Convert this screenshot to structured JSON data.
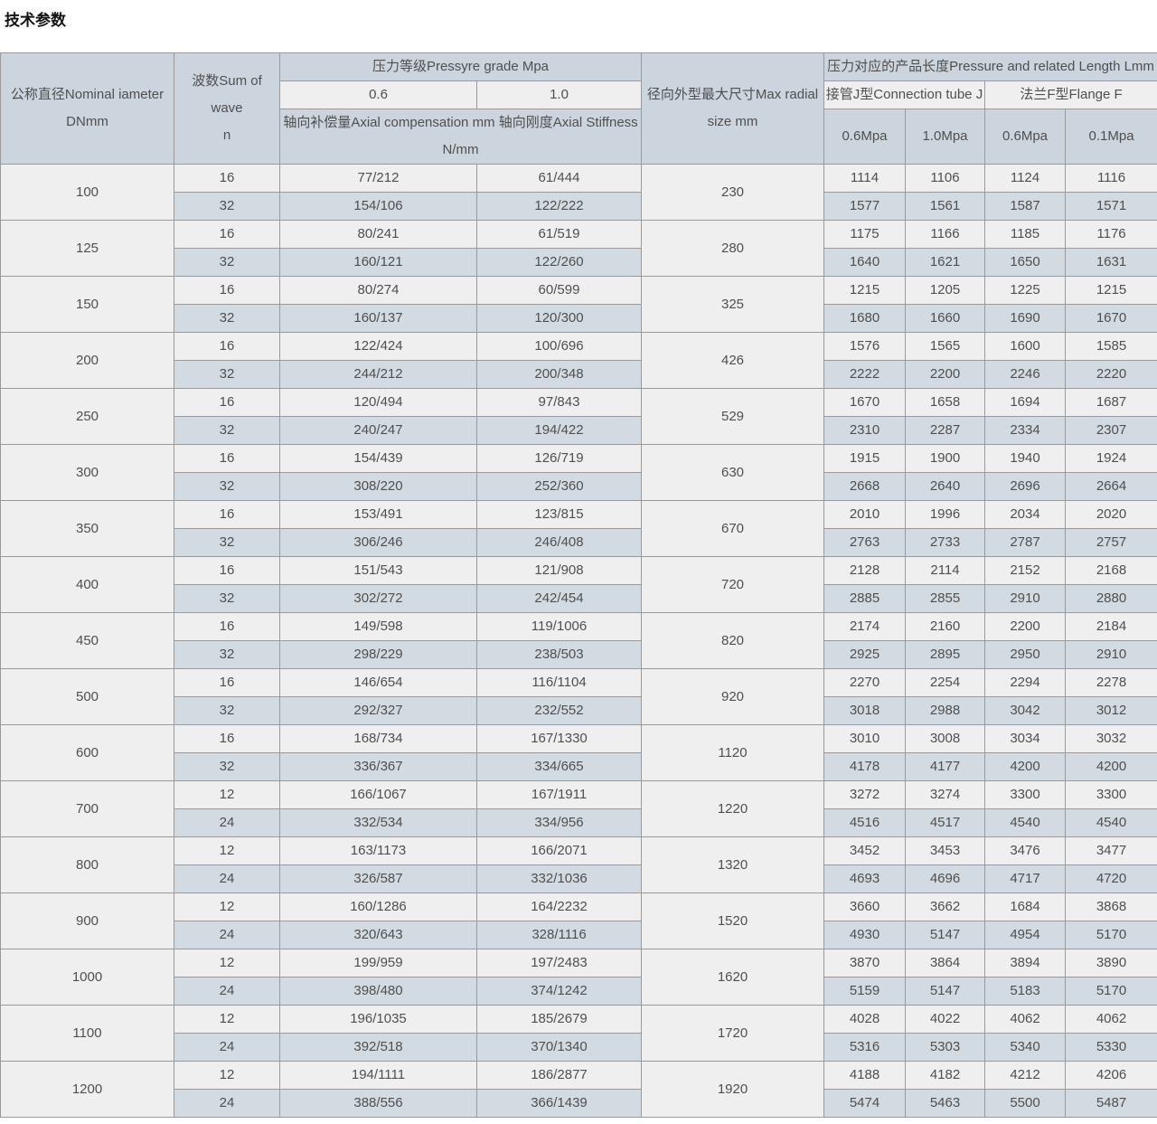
{
  "page": {
    "title": "技术参数"
  },
  "colors": {
    "header_bg": "#ccd5de",
    "subheader_bg": "#efefef",
    "row_light_bg": "#efefef",
    "row_blue_bg": "#d3dbe2",
    "border": "#9a9a9a",
    "text": "#4f4f4f"
  },
  "table": {
    "header": {
      "dn_line1": "公称直径Nominal iameter",
      "dn_line2": "DNmm",
      "wave_line1": "波数Sum of wave",
      "wave_line2": "n",
      "pressure_grade": "压力等级Pressyre grade Mpa",
      "grade_06": "0.6",
      "grade_10": "1.0",
      "axial_line1": "轴向补偿量Axial compensation mm 轴向刚度Axial Stiffness",
      "axial_line2": "N/mm",
      "radial_line1": "径向外型最大尺寸Max radial",
      "radial_line2": "size mm",
      "length_header": "压力对应的产品长度Pressure and related Length Lmm",
      "tube_j": "接管J型Connection tube J",
      "flange_f": "法兰F型Flange F",
      "mpa_cols": [
        "0.6Mpa",
        "1.0Mpa",
        "0.6Mpa",
        "0.1Mpa"
      ]
    },
    "groups": [
      {
        "dn": "100",
        "radial": "230",
        "rows": [
          [
            "16",
            "77/212",
            "61/444",
            "1114",
            "1106",
            "1124",
            "1116"
          ],
          [
            "32",
            "154/106",
            "122/222",
            "1577",
            "1561",
            "1587",
            "1571"
          ]
        ]
      },
      {
        "dn": "125",
        "radial": "280",
        "rows": [
          [
            "16",
            "80/241",
            "61/519",
            "1175",
            "1166",
            "1185",
            "1176"
          ],
          [
            "32",
            "160/121",
            "122/260",
            "1640",
            "1621",
            "1650",
            "1631"
          ]
        ]
      },
      {
        "dn": "150",
        "radial": "325",
        "rows": [
          [
            "16",
            "80/274",
            "60/599",
            "1215",
            "1205",
            "1225",
            "1215"
          ],
          [
            "32",
            "160/137",
            "120/300",
            "1680",
            "1660",
            "1690",
            "1670"
          ]
        ]
      },
      {
        "dn": "200",
        "radial": "426",
        "rows": [
          [
            "16",
            "122/424",
            "100/696",
            "1576",
            "1565",
            "1600",
            "1585"
          ],
          [
            "32",
            "244/212",
            "200/348",
            "2222",
            "2200",
            "2246",
            "2220"
          ]
        ]
      },
      {
        "dn": "250",
        "radial": "529",
        "rows": [
          [
            "16",
            "120/494",
            "97/843",
            "1670",
            "1658",
            "1694",
            "1687"
          ],
          [
            "32",
            "240/247",
            "194/422",
            "2310",
            "2287",
            "2334",
            "2307"
          ]
        ]
      },
      {
        "dn": "300",
        "radial": "630",
        "rows": [
          [
            "16",
            "154/439",
            "126/719",
            "1915",
            "1900",
            "1940",
            "1924"
          ],
          [
            "32",
            "308/220",
            "252/360",
            "2668",
            "2640",
            "2696",
            "2664"
          ]
        ]
      },
      {
        "dn": "350",
        "radial": "670",
        "rows": [
          [
            "16",
            "153/491",
            "123/815",
            "2010",
            "1996",
            "2034",
            "2020"
          ],
          [
            "32",
            "306/246",
            "246/408",
            "2763",
            "2733",
            "2787",
            "2757"
          ]
        ]
      },
      {
        "dn": "400",
        "radial": "720",
        "rows": [
          [
            "16",
            "151/543",
            "121/908",
            "2128",
            "2114",
            "2152",
            "2168"
          ],
          [
            "32",
            "302/272",
            "242/454",
            "2885",
            "2855",
            "2910",
            "2880"
          ]
        ]
      },
      {
        "dn": "450",
        "radial": "820",
        "rows": [
          [
            "16",
            "149/598",
            "119/1006",
            "2174",
            "2160",
            "2200",
            "2184"
          ],
          [
            "32",
            "298/229",
            "238/503",
            "2925",
            "2895",
            "2950",
            "2910"
          ]
        ]
      },
      {
        "dn": "500",
        "radial": "920",
        "rows": [
          [
            "16",
            "146/654",
            "116/1104",
            "2270",
            "2254",
            "2294",
            "2278"
          ],
          [
            "32",
            "292/327",
            "232/552",
            "3018",
            "2988",
            "3042",
            "3012"
          ]
        ]
      },
      {
        "dn": "600",
        "radial": "1120",
        "rows": [
          [
            "16",
            "168/734",
            "167/1330",
            "3010",
            "3008",
            "3034",
            "3032"
          ],
          [
            "32",
            "336/367",
            "334/665",
            "4178",
            "4177",
            "4200",
            "4200"
          ]
        ]
      },
      {
        "dn": "700",
        "radial": "1220",
        "rows": [
          [
            "12",
            "166/1067",
            "167/1911",
            "3272",
            "3274",
            "3300",
            "3300"
          ],
          [
            "24",
            "332/534",
            "334/956",
            "4516",
            "4517",
            "4540",
            "4540"
          ]
        ]
      },
      {
        "dn": "800",
        "radial": "1320",
        "rows": [
          [
            "12",
            "163/1173",
            "166/2071",
            "3452",
            "3453",
            "3476",
            "3477"
          ],
          [
            "24",
            "326/587",
            "332/1036",
            "4693",
            "4696",
            "4717",
            "4720"
          ]
        ]
      },
      {
        "dn": "900",
        "radial": "1520",
        "rows": [
          [
            "12",
            "160/1286",
            "164/2232",
            "3660",
            "3662",
            "1684",
            "3868"
          ],
          [
            "24",
            "320/643",
            "328/1116",
            "4930",
            "5147",
            "4954",
            "5170"
          ]
        ]
      },
      {
        "dn": "1000",
        "radial": "1620",
        "rows": [
          [
            "12",
            "199/959",
            "197/2483",
            "3870",
            "3864",
            "3894",
            "3890"
          ],
          [
            "24",
            "398/480",
            "374/1242",
            "5159",
            "5147",
            "5183",
            "5170"
          ]
        ]
      },
      {
        "dn": "1100",
        "radial": "1720",
        "rows": [
          [
            "12",
            "196/1035",
            "185/2679",
            "4028",
            "4022",
            "4062",
            "4062"
          ],
          [
            "24",
            "392/518",
            "370/1340",
            "5316",
            "5303",
            "5340",
            "5330"
          ]
        ]
      },
      {
        "dn": "1200",
        "radial": "1920",
        "rows": [
          [
            "12",
            "194/1111",
            "186/2877",
            "4188",
            "4182",
            "4212",
            "4206"
          ],
          [
            "24",
            "388/556",
            "366/1439",
            "5474",
            "5463",
            "5500",
            "5487"
          ]
        ]
      }
    ]
  }
}
